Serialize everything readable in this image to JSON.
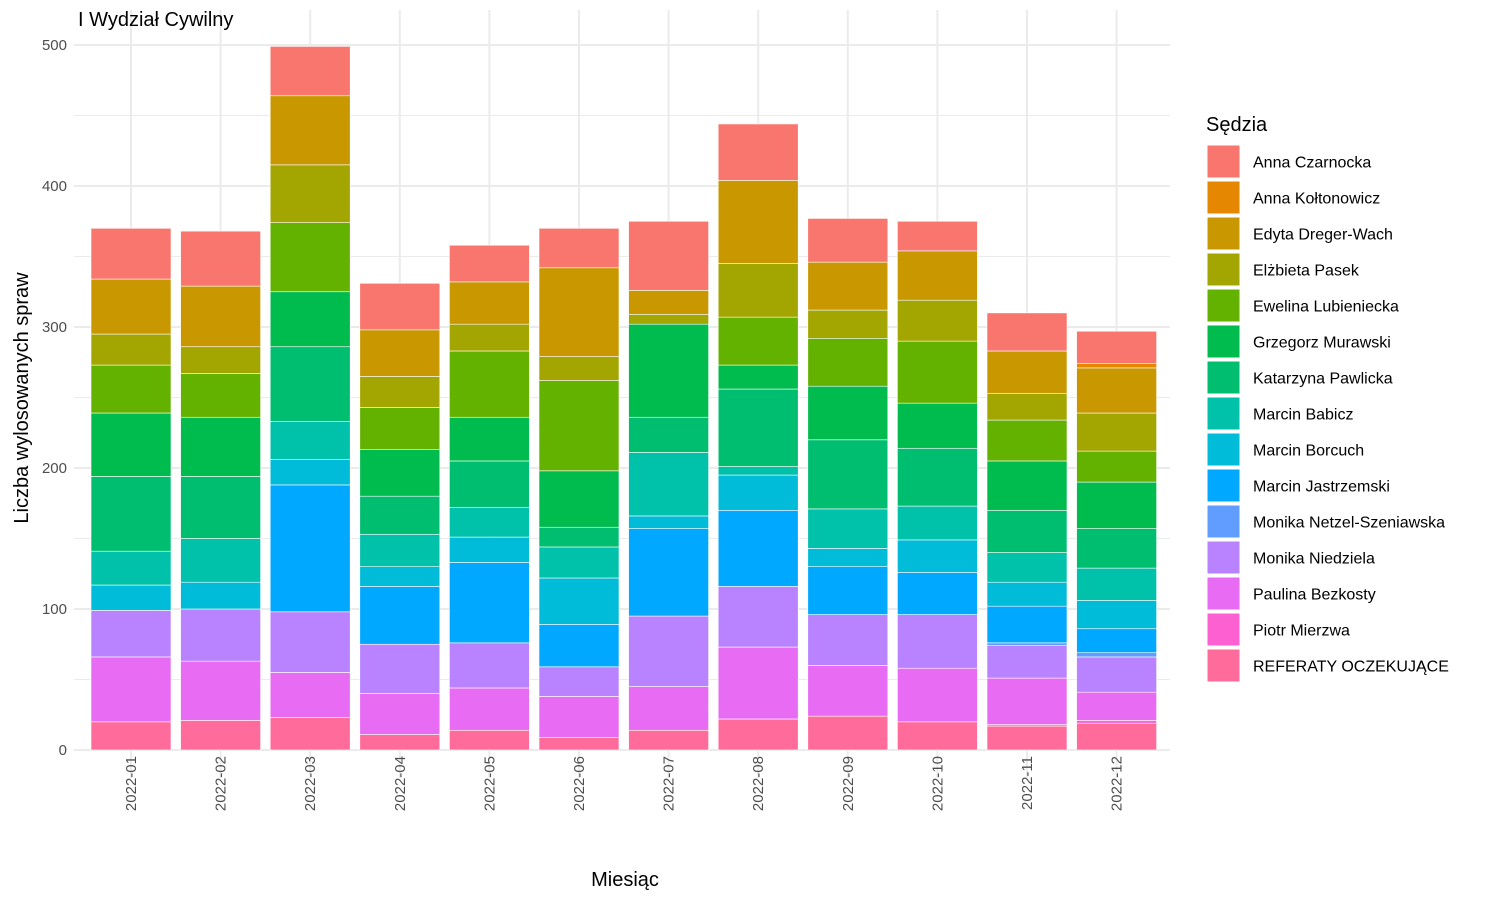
{
  "chart_data": {
    "type": "bar",
    "stacked": true,
    "title": "I Wydział Cywilny",
    "xlabel": "Miesiąc",
    "ylabel": "Liczba wylosowanych spraw",
    "ylim": [
      0,
      500
    ],
    "yticks": [
      0,
      100,
      200,
      300,
      400,
      500
    ],
    "grid": true,
    "legend_position": "right",
    "legend_title": "Sędzia",
    "categories": [
      "2022-01",
      "2022-02",
      "2022-03",
      "2022-04",
      "2022-05",
      "2022-06",
      "2022-07",
      "2022-08",
      "2022-09",
      "2022-10",
      "2022-11",
      "2022-12"
    ],
    "series": [
      {
        "name": "REFERATY OCZEKUJĄCE",
        "color": "#FF6C9C",
        "values": [
          20,
          21,
          23,
          11,
          14,
          9,
          14,
          22,
          24,
          20,
          17,
          19
        ]
      },
      {
        "name": "Piotr Mierzwa",
        "color": "#FD61D1",
        "values": [
          0,
          0,
          0,
          0,
          0,
          0,
          0,
          0,
          0,
          0,
          1,
          2
        ]
      },
      {
        "name": "Paulina Bezkosty",
        "color": "#E76BF3",
        "values": [
          46,
          42,
          32,
          29,
          30,
          29,
          31,
          51,
          36,
          38,
          33,
          20
        ]
      },
      {
        "name": "Monika Niedziela",
        "color": "#B983FF",
        "values": [
          33,
          37,
          43,
          35,
          32,
          21,
          50,
          43,
          36,
          38,
          23,
          25
        ]
      },
      {
        "name": "Monika Netzel-Szeniawska",
        "color": "#619CFF",
        "values": [
          0,
          0,
          0,
          0,
          0,
          0,
          0,
          0,
          0,
          0,
          2,
          3
        ]
      },
      {
        "name": "Marcin Jastrzemski",
        "color": "#00A9FF",
        "values": [
          0,
          0,
          90,
          41,
          57,
          30,
          62,
          54,
          34,
          30,
          26,
          17
        ]
      },
      {
        "name": "Marcin Borcuch",
        "color": "#00BCD8",
        "values": [
          18,
          19,
          18,
          14,
          18,
          33,
          9,
          25,
          13,
          23,
          17,
          20
        ]
      },
      {
        "name": "Marcin Babicz",
        "color": "#00C1AA",
        "values": [
          24,
          31,
          27,
          23,
          21,
          22,
          45,
          6,
          28,
          24,
          21,
          23
        ]
      },
      {
        "name": "Katarzyna Pawlicka",
        "color": "#00BE70",
        "values": [
          53,
          44,
          53,
          27,
          33,
          14,
          25,
          55,
          49,
          41,
          30,
          28
        ]
      },
      {
        "name": "Grzegorz Murawski",
        "color": "#00BB4E",
        "values": [
          45,
          42,
          39,
          33,
          31,
          40,
          66,
          17,
          38,
          32,
          35,
          33
        ]
      },
      {
        "name": "Ewelina Lubieniecka",
        "color": "#64B200",
        "values": [
          34,
          31,
          49,
          30,
          47,
          64,
          0,
          34,
          34,
          44,
          29,
          22
        ]
      },
      {
        "name": "Elżbieta Pasek",
        "color": "#A3A500",
        "values": [
          22,
          19,
          41,
          22,
          19,
          17,
          7,
          38,
          20,
          29,
          19,
          27
        ]
      },
      {
        "name": "Edyta Dreger-Wach",
        "color": "#C99800",
        "values": [
          39,
          43,
          49,
          33,
          30,
          63,
          17,
          59,
          34,
          35,
          30,
          32
        ]
      },
      {
        "name": "Anna Kołtonowicz",
        "color": "#E58700",
        "values": [
          0,
          0,
          0,
          0,
          0,
          0,
          0,
          0,
          0,
          0,
          0,
          3
        ]
      },
      {
        "name": "Anna Czarnocka",
        "color": "#F8766D",
        "values": [
          36,
          39,
          35,
          33,
          26,
          28,
          49,
          40,
          31,
          21,
          27,
          23
        ]
      }
    ],
    "legend_order": [
      "Anna Czarnocka",
      "Anna Kołtonowicz",
      "Edyta Dreger-Wach",
      "Elżbieta Pasek",
      "Ewelina Lubieniecka",
      "Grzegorz Murawski",
      "Katarzyna Pawlicka",
      "Marcin Babicz",
      "Marcin Borcuch",
      "Marcin Jastrzemski",
      "Monika Netzel-Szeniawska",
      "Monika Niedziela",
      "Paulina Bezkosty",
      "Piotr Mierzwa",
      "REFERATY OCZEKUJĄCE"
    ]
  }
}
